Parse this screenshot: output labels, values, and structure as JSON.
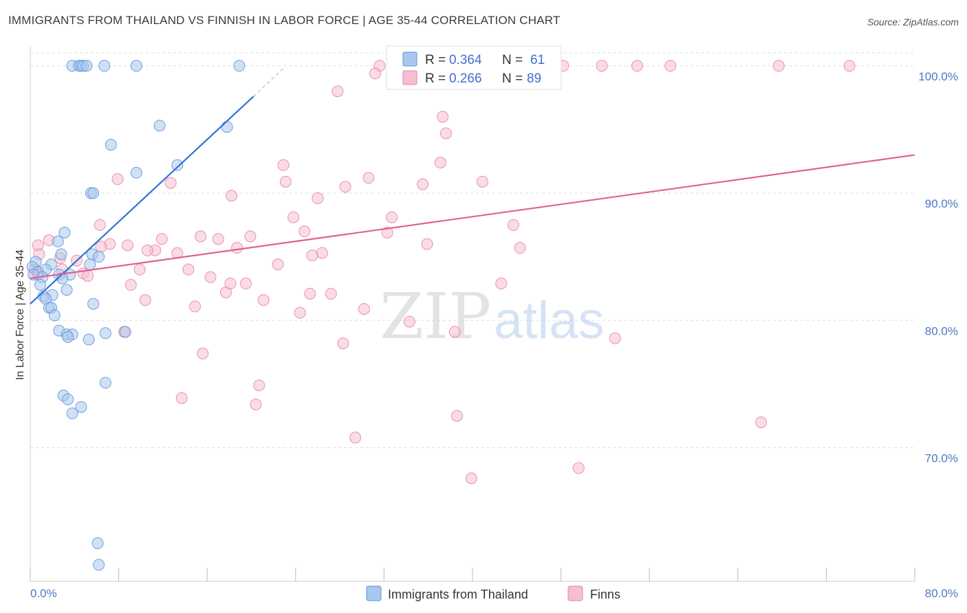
{
  "title": "IMMIGRANTS FROM THAILAND VS FINNISH IN LABOR FORCE | AGE 35-44 CORRELATION CHART",
  "source": "Source: ZipAtlas.com",
  "watermark": {
    "zip": "ZIP",
    "atlas": "atlas"
  },
  "colors": {
    "blue_fill": "#a9c8ef",
    "blue_stroke": "#5b8fd8",
    "blue_line": "#2f72d6",
    "pink_fill": "#f5bfd0",
    "pink_stroke": "#e77fa3",
    "pink_line": "#e0608e",
    "grid": "#dddddd",
    "axis": "#cccccc",
    "tick_text": "#4a78c8"
  },
  "stats": {
    "r_label": "R =",
    "n_label": "N =",
    "thailand": {
      "r": "0.364",
      "n": "61"
    },
    "finns": {
      "r": "0.266",
      "n": "89"
    }
  },
  "chart_data": {
    "type": "scatter",
    "title": "IMMIGRANTS FROM THAILAND VS FINNISH IN LABOR FORCE | AGE 35-44 CORRELATION CHART",
    "xlabel": "",
    "ylabel": "In Labor Force | Age 35-44",
    "xlim": [
      0,
      80
    ],
    "ylim": [
      59.5,
      101.5
    ],
    "x_tick_labels": [
      "0.0%",
      "80.0%"
    ],
    "y_ticks": [
      70,
      80,
      90,
      100
    ],
    "y_tick_labels": [
      "70.0%",
      "80.0%",
      "90.0%",
      "100.0%"
    ],
    "legend": [
      "Immigrants from Thailand",
      "Finns"
    ],
    "series": [
      {
        "name": "Immigrants from Thailand",
        "trend": {
          "x": [
            0.0,
            20.2
          ],
          "y": [
            81.3,
            97.6
          ],
          "dashed_to": {
            "x": 23.0,
            "y": 99.9
          }
        },
        "points": [
          [
            3.8,
            100.0
          ],
          [
            4.4,
            100.0
          ],
          [
            4.6,
            100.0
          ],
          [
            4.8,
            100.0
          ],
          [
            5.1,
            100.0
          ],
          [
            6.7,
            100.0
          ],
          [
            9.6,
            100.0
          ],
          [
            18.9,
            100.0
          ],
          [
            11.7,
            95.3
          ],
          [
            17.8,
            95.2
          ],
          [
            7.3,
            93.8
          ],
          [
            13.3,
            92.2
          ],
          [
            9.6,
            91.6
          ],
          [
            5.5,
            90.0
          ],
          [
            5.7,
            90.0
          ],
          [
            3.1,
            86.9
          ],
          [
            2.5,
            86.2
          ],
          [
            5.6,
            85.2
          ],
          [
            2.8,
            85.2
          ],
          [
            6.2,
            85.0
          ],
          [
            0.5,
            84.6
          ],
          [
            0.2,
            84.2
          ],
          [
            5.4,
            84.4
          ],
          [
            1.9,
            84.4
          ],
          [
            1.4,
            84.0
          ],
          [
            0.7,
            83.8
          ],
          [
            0.3,
            83.6
          ],
          [
            1.1,
            83.4
          ],
          [
            2.6,
            83.6
          ],
          [
            3.6,
            83.6
          ],
          [
            2.9,
            83.3
          ],
          [
            0.9,
            82.8
          ],
          [
            3.3,
            82.4
          ],
          [
            2.0,
            82.0
          ],
          [
            1.2,
            81.9
          ],
          [
            1.4,
            81.7
          ],
          [
            5.7,
            81.3
          ],
          [
            1.7,
            81.0
          ],
          [
            1.9,
            81.0
          ],
          [
            2.2,
            80.4
          ],
          [
            2.6,
            79.2
          ],
          [
            3.3,
            78.9
          ],
          [
            3.8,
            78.9
          ],
          [
            3.4,
            78.7
          ],
          [
            5.3,
            78.5
          ],
          [
            6.8,
            79.0
          ],
          [
            8.6,
            79.1
          ],
          [
            6.8,
            75.1
          ],
          [
            3.0,
            74.1
          ],
          [
            3.4,
            73.8
          ],
          [
            4.6,
            73.2
          ],
          [
            3.8,
            72.7
          ],
          [
            6.1,
            62.5
          ],
          [
            6.2,
            60.8
          ]
        ]
      },
      {
        "name": "Finns",
        "trend": {
          "x": [
            0.0,
            80.0
          ],
          "y": [
            83.3,
            93.0
          ]
        },
        "points": [
          [
            31.6,
            100.0
          ],
          [
            45.3,
            100.0
          ],
          [
            48.2,
            100.0
          ],
          [
            51.7,
            100.0
          ],
          [
            54.9,
            100.0
          ],
          [
            57.9,
            100.0
          ],
          [
            67.7,
            100.0
          ],
          [
            74.1,
            100.0
          ],
          [
            31.2,
            99.4
          ],
          [
            27.8,
            98.0
          ],
          [
            37.3,
            96.0
          ],
          [
            37.6,
            94.7
          ],
          [
            37.1,
            92.4
          ],
          [
            22.9,
            92.2
          ],
          [
            23.1,
            90.9
          ],
          [
            30.6,
            91.2
          ],
          [
            28.5,
            90.5
          ],
          [
            35.5,
            90.7
          ],
          [
            40.9,
            90.9
          ],
          [
            7.9,
            91.1
          ],
          [
            12.7,
            90.8
          ],
          [
            18.2,
            89.8
          ],
          [
            26.0,
            89.6
          ],
          [
            23.8,
            88.1
          ],
          [
            32.7,
            88.1
          ],
          [
            6.3,
            87.5
          ],
          [
            43.7,
            87.5
          ],
          [
            24.8,
            87.0
          ],
          [
            32.3,
            86.9
          ],
          [
            15.4,
            86.6
          ],
          [
            17.0,
            86.4
          ],
          [
            19.9,
            86.6
          ],
          [
            11.9,
            86.4
          ],
          [
            0.7,
            85.9
          ],
          [
            1.7,
            86.3
          ],
          [
            7.2,
            86.0
          ],
          [
            8.8,
            85.9
          ],
          [
            6.4,
            85.8
          ],
          [
            35.9,
            86.0
          ],
          [
            44.3,
            85.7
          ],
          [
            18.7,
            85.7
          ],
          [
            11.3,
            85.5
          ],
          [
            10.6,
            85.5
          ],
          [
            13.3,
            85.3
          ],
          [
            26.4,
            85.3
          ],
          [
            25.5,
            85.1
          ],
          [
            0.8,
            85.2
          ],
          [
            4.2,
            84.7
          ],
          [
            2.7,
            84.9
          ],
          [
            22.4,
            84.4
          ],
          [
            2.9,
            84.0
          ],
          [
            9.9,
            84.0
          ],
          [
            14.3,
            84.0
          ],
          [
            4.8,
            83.7
          ],
          [
            5.2,
            83.5
          ],
          [
            0.4,
            84.0
          ],
          [
            0.7,
            83.6
          ],
          [
            16.3,
            83.4
          ],
          [
            42.6,
            82.9
          ],
          [
            9.1,
            82.8
          ],
          [
            17.7,
            82.2
          ],
          [
            18.1,
            82.9
          ],
          [
            19.5,
            82.9
          ],
          [
            25.3,
            82.1
          ],
          [
            27.2,
            82.1
          ],
          [
            10.4,
            81.6
          ],
          [
            21.1,
            81.6
          ],
          [
            14.9,
            81.1
          ],
          [
            30.2,
            80.9
          ],
          [
            24.4,
            80.6
          ],
          [
            34.3,
            79.9
          ],
          [
            38.4,
            79.1
          ],
          [
            8.5,
            79.1
          ],
          [
            52.9,
            78.6
          ],
          [
            28.3,
            78.2
          ],
          [
            15.6,
            77.4
          ],
          [
            20.7,
            74.9
          ],
          [
            13.7,
            73.9
          ],
          [
            20.4,
            73.4
          ],
          [
            38.6,
            72.5
          ],
          [
            66.1,
            72.0
          ],
          [
            29.4,
            70.8
          ],
          [
            49.6,
            68.4
          ],
          [
            39.9,
            67.6
          ]
        ]
      }
    ]
  }
}
